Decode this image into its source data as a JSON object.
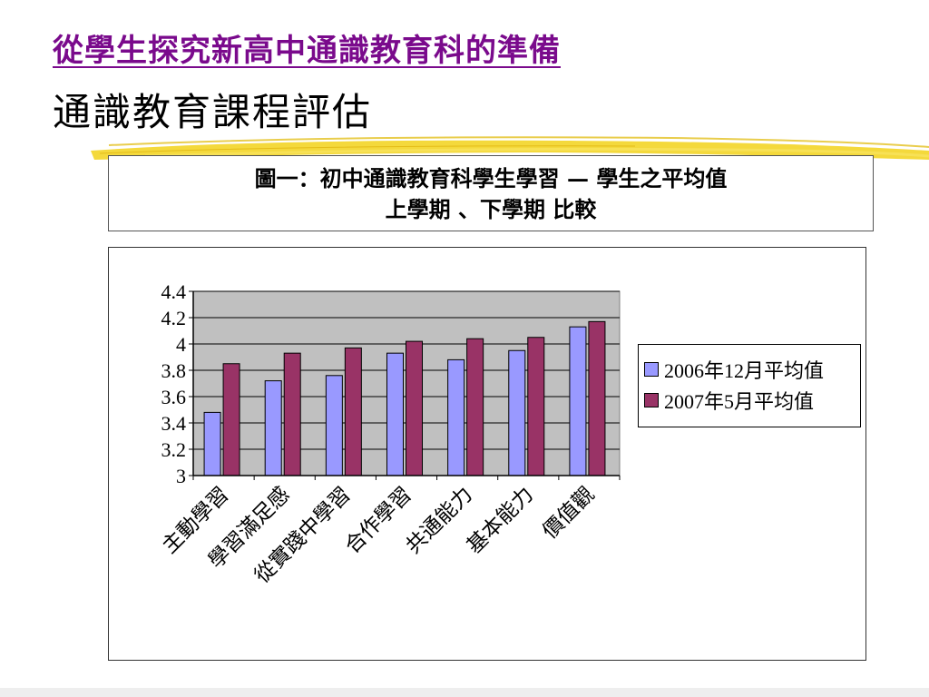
{
  "slide": {
    "title": "從學生探究新高中通識教育科的準備",
    "subtitle": "通識教育課程評估"
  },
  "caption": {
    "line1": "圖一：初中通識教育科學生學習 — 學生之平均值",
    "line2": "上學期 、下學期 比較"
  },
  "colors": {
    "title": "#7a0a8c",
    "series1": "#9999ff",
    "series2": "#993366",
    "plot_area": "#c0c0c0",
    "brush": "#f2d21a"
  },
  "chart_data": {
    "type": "bar",
    "title": "",
    "xlabel": "",
    "ylabel": "",
    "ylim": [
      3,
      4.4
    ],
    "yticks": [
      "3",
      "3.2",
      "3.4",
      "3.6",
      "3.8",
      "4",
      "4.2",
      "4.4"
    ],
    "grid": true,
    "legend_position": "right",
    "categories": [
      "主動學習",
      "學習滿足感",
      "從實踐中學習",
      "合作學習",
      "共通能力",
      "基本能力",
      "價值觀"
    ],
    "series": [
      {
        "name": "2006年12月平均值",
        "color": "#9999ff",
        "values": [
          3.48,
          3.72,
          3.76,
          3.93,
          3.88,
          3.95,
          4.13
        ]
      },
      {
        "name": "2007年5月平均值",
        "color": "#993366",
        "values": [
          3.85,
          3.93,
          3.97,
          4.02,
          4.04,
          4.05,
          4.17
        ]
      }
    ]
  }
}
